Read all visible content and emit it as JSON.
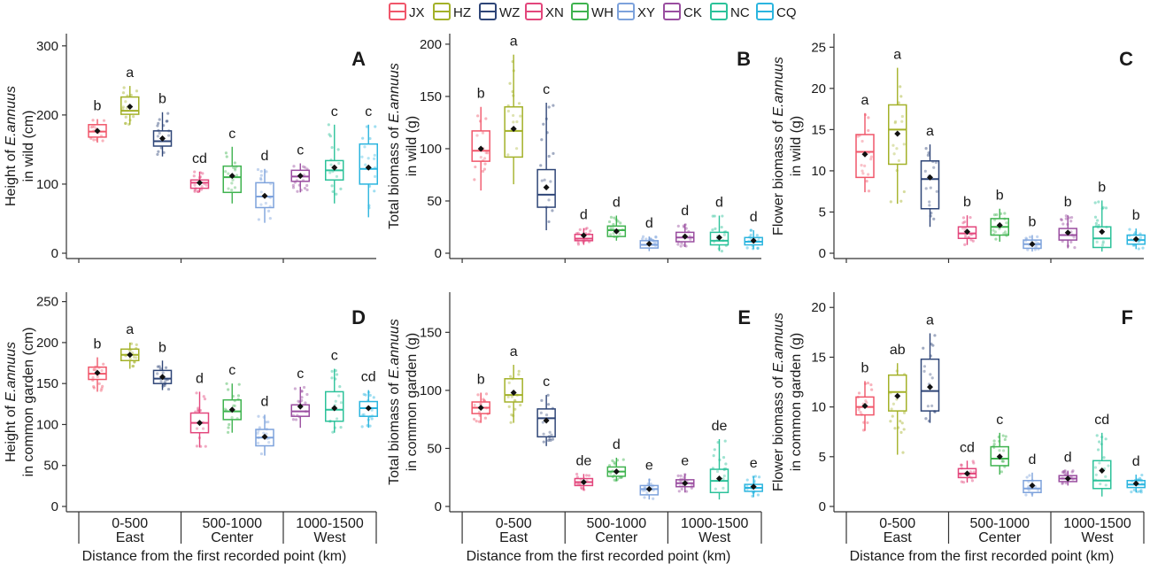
{
  "legend": [
    {
      "code": "JX",
      "color": "#f0566a"
    },
    {
      "code": "HZ",
      "color": "#a3b128"
    },
    {
      "code": "WZ",
      "color": "#2e4577"
    },
    {
      "code": "XN",
      "color": "#e3467c"
    },
    {
      "code": "WH",
      "color": "#3fb34f"
    },
    {
      "code": "XY",
      "color": "#7da2dc"
    },
    {
      "code": "CK",
      "color": "#9a4ea0"
    },
    {
      "code": "NC",
      "color": "#2cc29a"
    },
    {
      "code": "CQ",
      "color": "#2bb5df"
    }
  ],
  "x_axis": {
    "title": "Distance from the first recorded point (km)",
    "groups": [
      {
        "range": "0-500",
        "direction": "East"
      },
      {
        "range": "500-1000",
        "direction": "Center"
      },
      {
        "range": "1000-1500",
        "direction": "West"
      }
    ]
  },
  "chart_data": [
    {
      "id": "A",
      "type": "box",
      "ylabel_pre": "Height of ",
      "ylabel_species": "E.annuus",
      "ylabel_line2": "in wild (cm)",
      "ylim": [
        0,
        310
      ],
      "yticks": [
        0,
        100,
        200,
        300
      ],
      "boxes": [
        {
          "q1": 168,
          "med": 176,
          "q3": 186,
          "lo": 160,
          "hi": 194,
          "mean": 177,
          "letter": "b"
        },
        {
          "q1": 201,
          "med": 206,
          "q3": 226,
          "lo": 186,
          "hi": 242,
          "mean": 212,
          "letter": "a"
        },
        {
          "q1": 155,
          "med": 162,
          "q3": 177,
          "lo": 140,
          "hi": 204,
          "mean": 166,
          "letter": "b"
        },
        {
          "q1": 94,
          "med": 102,
          "q3": 106,
          "lo": 88,
          "hi": 118,
          "mean": 102,
          "letter": "cd"
        },
        {
          "q1": 88,
          "med": 110,
          "q3": 126,
          "lo": 72,
          "hi": 154,
          "mean": 112,
          "letter": "c"
        },
        {
          "q1": 66,
          "med": 82,
          "q3": 102,
          "lo": 44,
          "hi": 122,
          "mean": 83,
          "letter": "d"
        },
        {
          "q1": 104,
          "med": 111,
          "q3": 120,
          "lo": 88,
          "hi": 130,
          "mean": 112,
          "letter": "c"
        },
        {
          "q1": 106,
          "med": 120,
          "q3": 134,
          "lo": 72,
          "hi": 186,
          "mean": 124,
          "letter": "c"
        },
        {
          "q1": 100,
          "med": 122,
          "q3": 158,
          "lo": 52,
          "hi": 186,
          "mean": 124,
          "letter": "c"
        }
      ]
    },
    {
      "id": "B",
      "type": "box",
      "ylabel_pre": "Total biomass of ",
      "ylabel_species": "E.annuus",
      "ylabel_line2": "in wild (g)",
      "ylim": [
        0,
        205
      ],
      "yticks": [
        0,
        50,
        100,
        150,
        200
      ],
      "boxes": [
        {
          "q1": 88,
          "med": 98,
          "q3": 117,
          "lo": 60,
          "hi": 140,
          "mean": 100,
          "letter": "b"
        },
        {
          "q1": 92,
          "med": 117,
          "q3": 140,
          "lo": 66,
          "hi": 190,
          "mean": 119,
          "letter": "a"
        },
        {
          "q1": 44,
          "med": 56,
          "q3": 80,
          "lo": 22,
          "hi": 144,
          "mean": 63,
          "letter": "c"
        },
        {
          "q1": 12,
          "med": 14,
          "q3": 18,
          "lo": 8,
          "hi": 24,
          "mean": 17,
          "letter": "d"
        },
        {
          "q1": 16,
          "med": 22,
          "q3": 26,
          "lo": 12,
          "hi": 36,
          "mean": 21,
          "letter": "d"
        },
        {
          "q1": 5,
          "med": 8,
          "q3": 12,
          "lo": 2,
          "hi": 16,
          "mean": 9,
          "letter": "d"
        },
        {
          "q1": 11,
          "med": 15,
          "q3": 20,
          "lo": 6,
          "hi": 28,
          "mean": 16,
          "letter": "d"
        },
        {
          "q1": 8,
          "med": 12,
          "q3": 20,
          "lo": 2,
          "hi": 36,
          "mean": 15,
          "letter": "d"
        },
        {
          "q1": 8,
          "med": 11,
          "q3": 15,
          "lo": 4,
          "hi": 22,
          "mean": 12,
          "letter": "d"
        }
      ]
    },
    {
      "id": "C",
      "type": "box",
      "ylabel_pre": "Flower biomass of ",
      "ylabel_species": "E.annuus",
      "ylabel_line2": "in wild (g)",
      "ylim": [
        0,
        26
      ],
      "yticks": [
        0,
        5,
        10,
        15,
        20,
        25
      ],
      "boxes": [
        {
          "q1": 9.2,
          "med": 12.3,
          "q3": 14.4,
          "lo": 7.4,
          "hi": 17,
          "mean": 12,
          "letter": "a"
        },
        {
          "q1": 10.8,
          "med": 15,
          "q3": 18,
          "lo": 6,
          "hi": 22.5,
          "mean": 14.5,
          "letter": "a"
        },
        {
          "q1": 5.4,
          "med": 9,
          "q3": 11.2,
          "lo": 3.2,
          "hi": 13.2,
          "mean": 9.2,
          "letter": "a"
        },
        {
          "q1": 1.8,
          "med": 2.4,
          "q3": 3.2,
          "lo": 1,
          "hi": 4.6,
          "mean": 2.6,
          "letter": "b"
        },
        {
          "q1": 2.2,
          "med": 3.2,
          "q3": 4.2,
          "lo": 1.4,
          "hi": 5.4,
          "mean": 3.4,
          "letter": "b"
        },
        {
          "q1": 0.6,
          "med": 1.1,
          "q3": 1.6,
          "lo": 0.2,
          "hi": 2.2,
          "mean": 1.1,
          "letter": "b"
        },
        {
          "q1": 1.6,
          "med": 2.2,
          "q3": 3,
          "lo": 0.6,
          "hi": 4.6,
          "mean": 2.5,
          "letter": "b"
        },
        {
          "q1": 0.7,
          "med": 1.8,
          "q3": 3.2,
          "lo": 0.2,
          "hi": 6.4,
          "mean": 2.6,
          "letter": "b"
        },
        {
          "q1": 1.1,
          "med": 1.6,
          "q3": 2.2,
          "lo": 0.5,
          "hi": 3,
          "mean": 1.7,
          "letter": "b"
        }
      ]
    },
    {
      "id": "D",
      "type": "box",
      "ylabel_pre": "Height of ",
      "ylabel_species": "E.annuus",
      "ylabel_line2": "in common garden (cm)",
      "ylim": [
        0,
        255
      ],
      "yticks": [
        0,
        50,
        100,
        150,
        200,
        250
      ],
      "boxes": [
        {
          "q1": 155,
          "med": 162,
          "q3": 170,
          "lo": 140,
          "hi": 182,
          "mean": 163,
          "letter": "b"
        },
        {
          "q1": 178,
          "med": 185,
          "q3": 192,
          "lo": 168,
          "hi": 200,
          "mean": 185,
          "letter": "a"
        },
        {
          "q1": 150,
          "med": 156,
          "q3": 166,
          "lo": 142,
          "hi": 178,
          "mean": 158,
          "letter": "b"
        },
        {
          "q1": 90,
          "med": 102,
          "q3": 114,
          "lo": 72,
          "hi": 140,
          "mean": 102,
          "letter": "d"
        },
        {
          "q1": 106,
          "med": 116,
          "q3": 130,
          "lo": 90,
          "hi": 150,
          "mean": 118,
          "letter": "c"
        },
        {
          "q1": 74,
          "med": 84,
          "q3": 94,
          "lo": 62,
          "hi": 112,
          "mean": 85,
          "letter": "d"
        },
        {
          "q1": 110,
          "med": 116,
          "q3": 124,
          "lo": 96,
          "hi": 146,
          "mean": 122,
          "letter": "c"
        },
        {
          "q1": 104,
          "med": 118,
          "q3": 140,
          "lo": 90,
          "hi": 168,
          "mean": 120,
          "letter": "c"
        },
        {
          "q1": 110,
          "med": 120,
          "q3": 128,
          "lo": 96,
          "hi": 142,
          "mean": 120,
          "letter": "cd"
        }
      ]
    },
    {
      "id": "E",
      "type": "box",
      "ylabel_pre": "Total biomass of ",
      "ylabel_species": "E.annuus",
      "ylabel_line2": "in common garden (g)",
      "ylim": [
        0,
        180
      ],
      "yticks": [
        0,
        50,
        100,
        150
      ],
      "boxes": [
        {
          "q1": 80,
          "med": 85,
          "q3": 90,
          "lo": 72,
          "hi": 98,
          "mean": 85,
          "letter": "b"
        },
        {
          "q1": 90,
          "med": 96,
          "q3": 110,
          "lo": 72,
          "hi": 122,
          "mean": 98,
          "letter": "a"
        },
        {
          "q1": 60,
          "med": 76,
          "q3": 84,
          "lo": 52,
          "hi": 96,
          "mean": 74,
          "letter": "c"
        },
        {
          "q1": 18,
          "med": 21,
          "q3": 24,
          "lo": 14,
          "hi": 28,
          "mean": 21,
          "letter": "de"
        },
        {
          "q1": 26,
          "med": 30,
          "q3": 34,
          "lo": 22,
          "hi": 42,
          "mean": 30,
          "letter": "d"
        },
        {
          "q1": 10,
          "med": 15,
          "q3": 18,
          "lo": 6,
          "hi": 24,
          "mean": 15,
          "letter": "e"
        },
        {
          "q1": 17,
          "med": 20,
          "q3": 23,
          "lo": 12,
          "hi": 28,
          "mean": 20,
          "letter": "e"
        },
        {
          "q1": 12,
          "med": 22,
          "q3": 32,
          "lo": 6,
          "hi": 58,
          "mean": 24,
          "letter": "de"
        },
        {
          "q1": 13,
          "med": 16,
          "q3": 19,
          "lo": 8,
          "hi": 26,
          "mean": 17,
          "letter": "e"
        }
      ]
    },
    {
      "id": "F",
      "type": "box",
      "ylabel_pre": "Flower biomass of ",
      "ylabel_species": "E.annuus",
      "ylabel_line2": "in common garden (g)",
      "ylim": [
        0,
        21
      ],
      "yticks": [
        0,
        5,
        10,
        15,
        20
      ],
      "boxes": [
        {
          "q1": 9.2,
          "med": 10,
          "q3": 11,
          "lo": 7.6,
          "hi": 12.6,
          "mean": 10.1,
          "letter": "b"
        },
        {
          "q1": 9.6,
          "med": 11.5,
          "q3": 13.2,
          "lo": 5.2,
          "hi": 14.4,
          "mean": 11.1,
          "letter": "ab"
        },
        {
          "q1": 9.6,
          "med": 11.6,
          "q3": 14.8,
          "lo": 8.4,
          "hi": 17.4,
          "mean": 12,
          "letter": "a"
        },
        {
          "q1": 2.9,
          "med": 3.3,
          "q3": 3.8,
          "lo": 2.4,
          "hi": 4.6,
          "mean": 3.3,
          "letter": "cd"
        },
        {
          "q1": 4.1,
          "med": 4.8,
          "q3": 6,
          "lo": 3.2,
          "hi": 7.4,
          "mean": 5,
          "letter": "c"
        },
        {
          "q1": 1.4,
          "med": 1.8,
          "q3": 2.6,
          "lo": 1,
          "hi": 3.4,
          "mean": 2.1,
          "letter": "d"
        },
        {
          "q1": 2.5,
          "med": 2.8,
          "q3": 3.1,
          "lo": 2.1,
          "hi": 3.6,
          "mean": 2.8,
          "letter": "d"
        },
        {
          "q1": 1.8,
          "med": 2.6,
          "q3": 4.6,
          "lo": 1,
          "hi": 7.4,
          "mean": 3.6,
          "letter": "cd"
        },
        {
          "q1": 1.9,
          "med": 2.2,
          "q3": 2.6,
          "lo": 1.4,
          "hi": 3.2,
          "mean": 2.3,
          "letter": "d"
        }
      ]
    }
  ]
}
